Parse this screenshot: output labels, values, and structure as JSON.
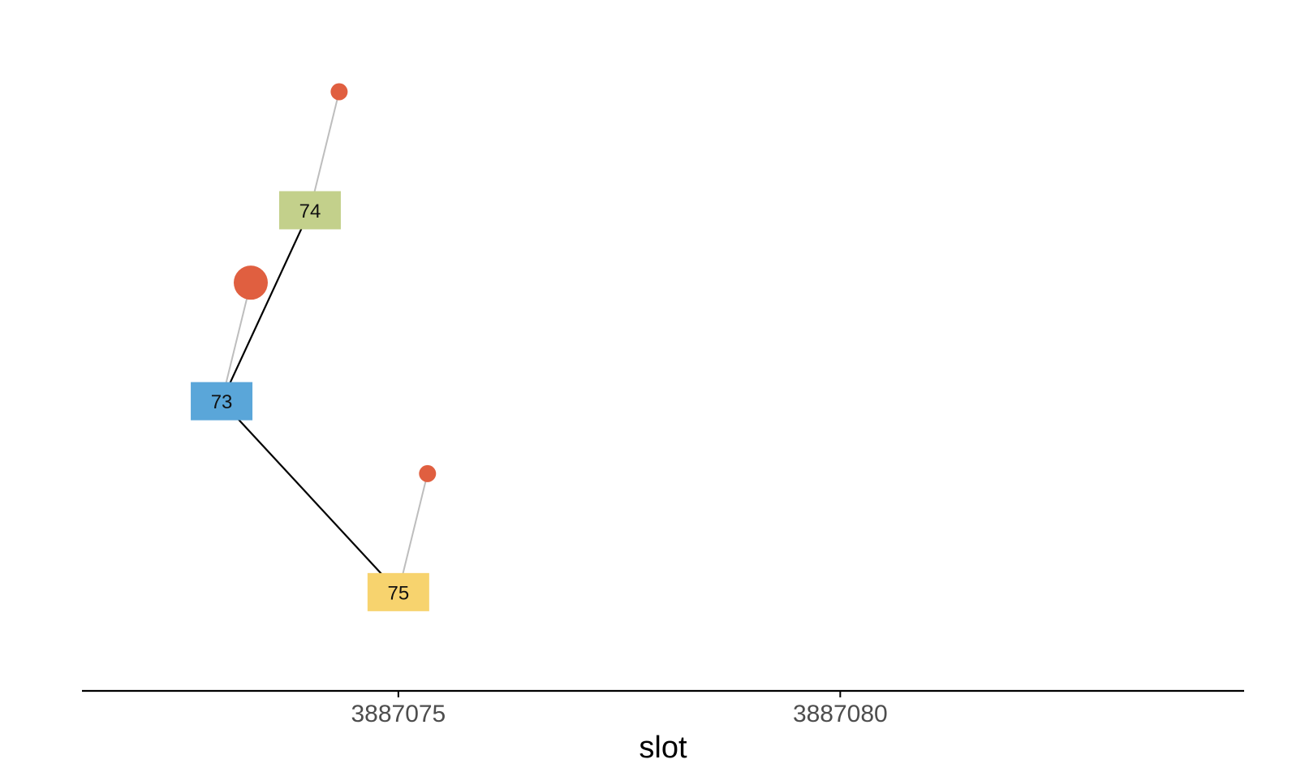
{
  "chart_data": {
    "type": "scatter",
    "title": "",
    "xlabel": "slot",
    "ylabel": "",
    "x_ticks": [
      3887075,
      3887080
    ],
    "x_tick_labels": [
      "3887075",
      "3887080"
    ],
    "xlim": [
      3887071.42,
      3887084.57
    ],
    "ylim": [
      0,
      1
    ],
    "grid": false,
    "legend": "none",
    "nodes": [
      {
        "label": "73",
        "slot": 3887073,
        "y": 0.44,
        "color": "#5aa6d9"
      },
      {
        "label": "74",
        "slot": 3887074,
        "y": 0.73,
        "color": "#c3d08b"
      },
      {
        "label": "75",
        "slot": 3887075,
        "y": 0.15,
        "color": "#f7d36e"
      }
    ],
    "edges": [
      {
        "from": "73",
        "to": "74"
      },
      {
        "from": "73",
        "to": "75"
      }
    ],
    "markers": [
      {
        "node": "73",
        "slot": 3887073.33,
        "y": 0.62,
        "size": "large",
        "color": "#e05f40"
      },
      {
        "node": "74",
        "slot": 3887074.33,
        "y": 0.91,
        "size": "small",
        "color": "#e05f40"
      },
      {
        "node": "75",
        "slot": 3887075.33,
        "y": 0.33,
        "size": "small",
        "color": "#e05f40"
      }
    ],
    "colors": {
      "edge": "#000000",
      "stem": "#bdbdbd",
      "axis": "#000000"
    }
  }
}
